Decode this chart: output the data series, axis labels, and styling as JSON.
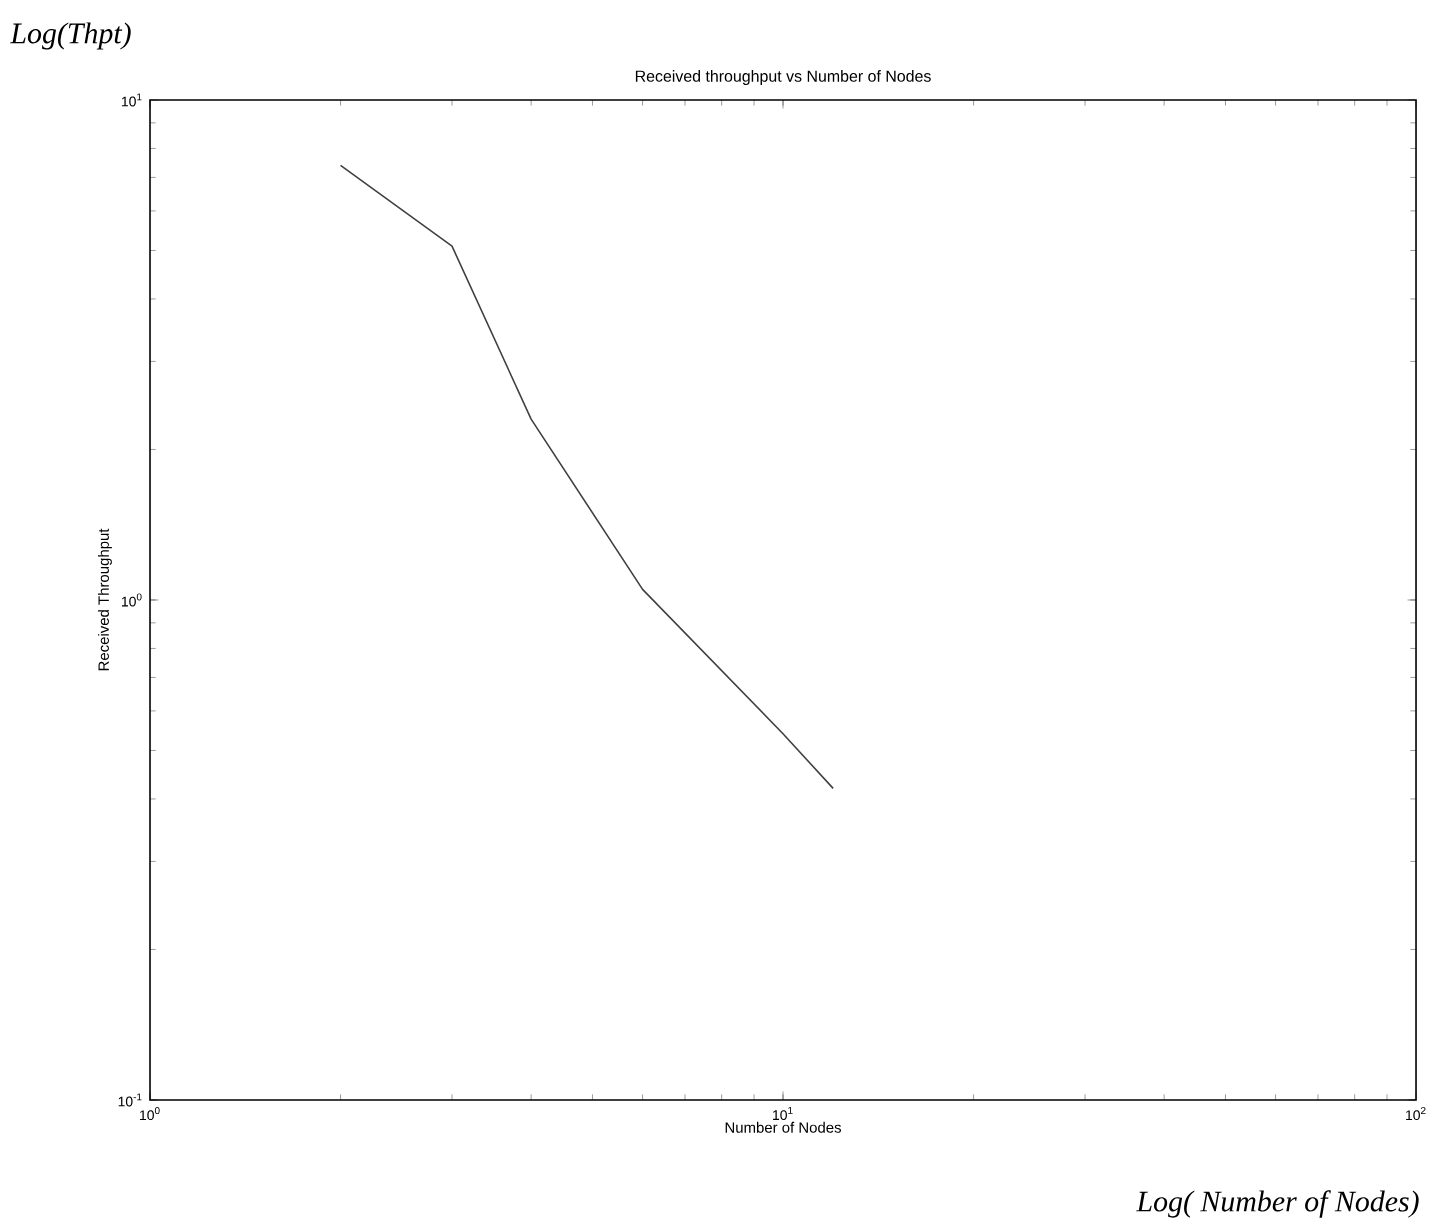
{
  "chart_data": {
    "type": "line",
    "title": "Received throughput vs Number of Nodes",
    "xlabel": "Number of Nodes",
    "ylabel": "Received Throughput",
    "annotations": [
      "Log(Thpt)",
      "Log( Number of Nodes)"
    ],
    "log": "xy",
    "x": [
      2,
      3,
      4,
      6,
      10,
      12
    ],
    "series": [
      {
        "color": "#404040",
        "values": [
          7.4,
          5.1,
          2.3,
          1.05,
          0.54,
          0.42
        ]
      }
    ],
    "xlim": [
      1,
      100
    ],
    "xticks": [
      {
        "value": 1,
        "label": "10$^{0}$"
      },
      {
        "value": 10,
        "label": "10$^{1}$"
      },
      {
        "value": 100,
        "label": "10$^{2}$"
      }
    ],
    "ylim": [
      0.1,
      10
    ],
    "yticks": [
      {
        "value": 0.1,
        "label": "10$^{-1}$"
      },
      {
        "value": 1,
        "label": "10$^{0}$"
      },
      {
        "value": 10,
        "label": "10$^{1}$"
      }
    ]
  }
}
